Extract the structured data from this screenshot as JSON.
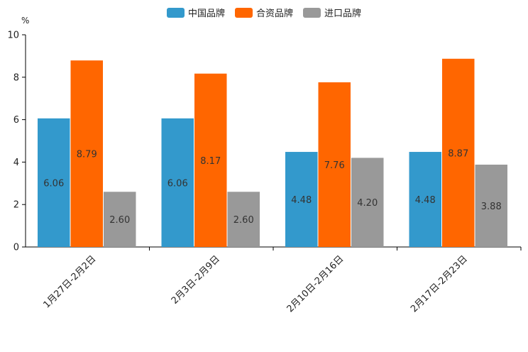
{
  "chart_data": {
    "type": "bar",
    "unit_label": "%",
    "categories": [
      "1月27日-2月2日",
      "2月3日-2月9日",
      "2月10日-2月16日",
      "2月17日-2月23日"
    ],
    "series": [
      {
        "name": "中国品牌",
        "color": "#3399cc",
        "values": [
          6.06,
          6.06,
          4.48,
          4.48
        ],
        "labels": [
          "6.06",
          "6.06",
          "4.48",
          "4.48"
        ]
      },
      {
        "name": "合资品牌",
        "color": "#ff6600",
        "values": [
          8.79,
          8.17,
          7.76,
          8.87
        ],
        "labels": [
          "8.79",
          "8.17",
          "7.76",
          "8.87"
        ]
      },
      {
        "name": "进口品牌",
        "color": "#999999",
        "values": [
          2.6,
          2.6,
          4.2,
          3.88
        ],
        "labels": [
          "2.60",
          "2.60",
          "4.20",
          "3.88"
        ]
      }
    ],
    "ylim": [
      0,
      10
    ],
    "yticks": [
      "0",
      "2",
      "4",
      "6",
      "8",
      "10"
    ],
    "legend_position": "top-center",
    "grid": false
  }
}
